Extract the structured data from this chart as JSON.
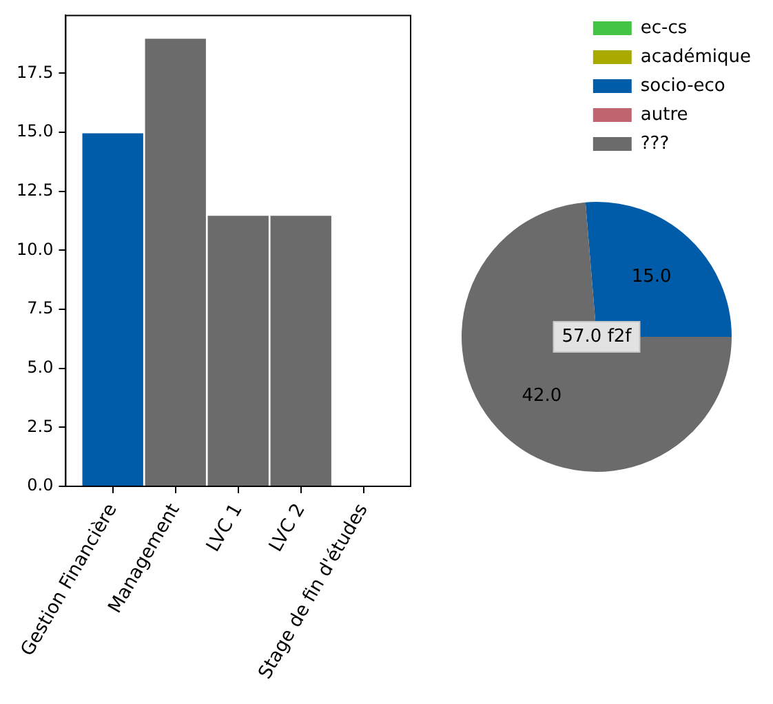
{
  "chart_data": [
    {
      "type": "bar",
      "categories": [
        "Gestion Financière",
        "Management",
        "LVC 1",
        "LVC 2",
        "Stage de fin d'études"
      ],
      "values": [
        15,
        19,
        11.5,
        11.5,
        0
      ],
      "colors": [
        "#005ca9",
        "#6b6b6b",
        "#6b6b6b",
        "#6b6b6b",
        "#6b6b6b"
      ],
      "ylim": [
        0,
        19.95
      ],
      "yticks": [
        {
          "value": 0,
          "label": "0.0"
        },
        2.5,
        {
          "value": 5,
          "label": "5.0"
        },
        7.5,
        {
          "value": 10,
          "label": "10.0"
        },
        12.5,
        {
          "value": 15,
          "label": "15.0"
        },
        17.5
      ]
    },
    {
      "type": "pie",
      "categories": [
        "ec-cs",
        "académique",
        "socio-eco",
        "autre",
        "???"
      ],
      "values": [
        0,
        0,
        15,
        0,
        42
      ],
      "colors": [
        "#44c444",
        "#a8aa00",
        "#005ca9",
        "#c06570",
        "#6b6b6b"
      ],
      "value_labels": [
        null,
        null,
        "15.0",
        null,
        "42.0"
      ],
      "legend": "top right",
      "annotations": [
        "57.0 f2f"
      ]
    }
  ]
}
